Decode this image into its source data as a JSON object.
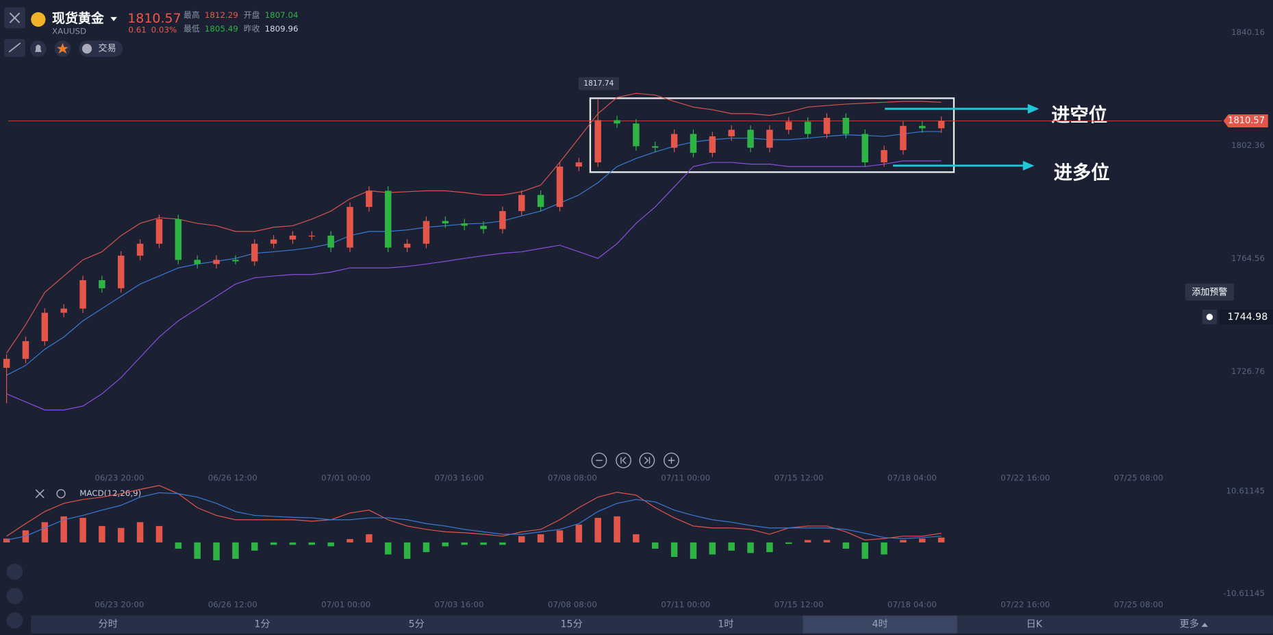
{
  "header": {
    "symbol_name": "现货黄金",
    "code": "XAUUSD",
    "price": "1810.57",
    "change": "0.61",
    "change_pct": "0.03%",
    "stats": [
      {
        "label": "最高",
        "value": "1812.29"
      },
      {
        "label": "开盘",
        "value": "1807.04"
      },
      {
        "label": "最低",
        "value": "1805.49"
      },
      {
        "label": "昨收",
        "value": "1809.96"
      }
    ],
    "trade_button": "交易"
  },
  "chart_data": [
    {
      "type": "candlestick",
      "ylim": [
        1703,
        1851
      ],
      "yticks": [
        1840.16,
        1802.36,
        1764.56,
        1726.76
      ],
      "up_color": "#e4554a",
      "down_color": "#2fb344",
      "open": [
        1728.0,
        1731.0,
        1736.9,
        1746.4,
        1747.8,
        1757.3,
        1754.6,
        1765.5,
        1769.5,
        1777.7,
        1764.1,
        1762.7,
        1764.1,
        1763.6,
        1769.5,
        1770.9,
        1772.2,
        1772.2,
        1768.2,
        1781.8,
        1787.2,
        1768.2,
        1769.5,
        1777.1,
        1776.3,
        1775.5,
        1774.4,
        1780.4,
        1785.8,
        1781.8,
        1795.3,
        1796.7,
        1810.8,
        1809.7,
        1802.1,
        1801.6,
        1806.2,
        1799.9,
        1805.4,
        1807.6,
        1801.6,
        1807.6,
        1810.3,
        1806.2,
        1811.6,
        1806.2,
        1796.7,
        1800.8,
        1808.9,
        1808.1
      ],
      "high": [
        1732.5,
        1738.4,
        1747.9,
        1749.3,
        1758.8,
        1758.8,
        1767.0,
        1771.0,
        1779.2,
        1779.2,
        1765.6,
        1765.6,
        1765.6,
        1771.0,
        1772.4,
        1773.7,
        1773.7,
        1773.7,
        1783.3,
        1788.7,
        1788.7,
        1771.0,
        1778.6,
        1778.6,
        1777.8,
        1777.0,
        1781.9,
        1787.3,
        1787.3,
        1796.8,
        1798.2,
        1817.74,
        1812.3,
        1811.2,
        1803.6,
        1807.7,
        1807.7,
        1806.9,
        1809.1,
        1809.1,
        1809.1,
        1811.8,
        1811.8,
        1813.1,
        1813.1,
        1807.7,
        1802.3,
        1810.4,
        1810.4,
        1812.07
      ],
      "low": [
        1716.15,
        1729.5,
        1735.4,
        1744.9,
        1746.3,
        1753.1,
        1753.1,
        1764.0,
        1768.0,
        1762.6,
        1761.2,
        1761.2,
        1762.6,
        1762.1,
        1768.0,
        1769.4,
        1770.7,
        1766.7,
        1766.7,
        1780.3,
        1766.7,
        1766.7,
        1768.0,
        1774.8,
        1774.0,
        1772.9,
        1772.9,
        1778.9,
        1780.3,
        1780.3,
        1793.8,
        1795.2,
        1808.2,
        1800.6,
        1800.1,
        1800.1,
        1798.4,
        1798.4,
        1803.9,
        1800.1,
        1800.1,
        1806.1,
        1804.7,
        1804.7,
        1804.7,
        1795.2,
        1795.2,
        1799.3,
        1806.6,
        1806.6
      ],
      "close": [
        1731.0,
        1736.9,
        1746.4,
        1747.8,
        1757.3,
        1754.6,
        1765.5,
        1769.5,
        1777.7,
        1764.1,
        1762.7,
        1764.1,
        1763.6,
        1769.5,
        1770.9,
        1772.2,
        1772.2,
        1768.2,
        1781.8,
        1787.2,
        1768.2,
        1769.5,
        1777.1,
        1776.3,
        1775.5,
        1774.4,
        1780.4,
        1785.8,
        1781.8,
        1795.3,
        1796.7,
        1810.8,
        1809.7,
        1802.1,
        1801.6,
        1806.2,
        1799.9,
        1805.4,
        1807.6,
        1801.6,
        1807.6,
        1810.3,
        1806.2,
        1811.6,
        1806.2,
        1796.7,
        1800.8,
        1808.9,
        1808.1,
        1810.57
      ],
      "bands": [
        {
          "color": "#d9534f",
          "values": [
            1732.9,
            1742.4,
            1753.2,
            1758.7,
            1764.1,
            1766.8,
            1772.2,
            1776.3,
            1778.2,
            1777.7,
            1776.3,
            1775.5,
            1773.6,
            1773.6,
            1775.0,
            1775.5,
            1777.7,
            1780.4,
            1784.5,
            1787.2,
            1786.6,
            1786.9,
            1787.2,
            1787.2,
            1786.6,
            1785.8,
            1785.8,
            1786.9,
            1789.1,
            1796.7,
            1804.8,
            1813.0,
            1818.4,
            1819.8,
            1819.2,
            1817.1,
            1815.2,
            1814.3,
            1813.0,
            1813.0,
            1812.4,
            1813.5,
            1815.2,
            1815.7,
            1816.2,
            1816.5,
            1816.8,
            1817.1,
            1817.1,
            1816.8
          ]
        },
        {
          "color": "#3a7bd5",
          "values": [
            1725.5,
            1728.8,
            1734.2,
            1738.3,
            1743.7,
            1747.8,
            1751.9,
            1756.0,
            1758.7,
            1761.4,
            1762.7,
            1763.6,
            1764.6,
            1766.3,
            1766.8,
            1767.4,
            1768.2,
            1769.5,
            1772.2,
            1773.6,
            1773.6,
            1774.1,
            1775.0,
            1775.5,
            1776.1,
            1776.3,
            1777.1,
            1778.8,
            1780.4,
            1783.1,
            1785.8,
            1789.9,
            1795.3,
            1798.0,
            1800.2,
            1802.1,
            1803.5,
            1804.3,
            1804.8,
            1804.8,
            1804.3,
            1804.3,
            1804.8,
            1805.4,
            1805.9,
            1805.7,
            1805.4,
            1806.2,
            1807.0,
            1807.0
          ]
        },
        {
          "color": "#8a4fe0",
          "values": [
            1719.3,
            1716.6,
            1713.9,
            1713.9,
            1715.2,
            1719.3,
            1724.7,
            1731.5,
            1738.3,
            1743.7,
            1747.8,
            1751.9,
            1756.0,
            1758.1,
            1758.7,
            1759.2,
            1759.2,
            1760.0,
            1761.4,
            1761.4,
            1761.4,
            1761.9,
            1762.7,
            1763.6,
            1764.6,
            1765.5,
            1766.3,
            1766.8,
            1767.9,
            1769.0,
            1766.8,
            1764.6,
            1769.5,
            1776.3,
            1781.8,
            1788.5,
            1795.3,
            1796.7,
            1796.7,
            1796.1,
            1796.1,
            1795.3,
            1795.3,
            1795.3,
            1795.3,
            1795.3,
            1796.1,
            1797.2,
            1797.2,
            1797.2
          ]
        }
      ],
      "x_labels": [
        "06/23 20:00",
        "06/26 12:00",
        "07/01 00:00",
        "07/03 16:00",
        "07/08 08:00",
        "07/11 00:00",
        "07/15 12:00",
        "07/18 04:00",
        "07/22 16:00",
        "07/25 08:00"
      ],
      "current_price": 1810.57,
      "high_label": 1817.74,
      "annotations": [
        "进空位",
        "进多位"
      ],
      "alert": {
        "button": "添加预警",
        "price": 1744.98
      }
    },
    {
      "type": "macd",
      "title": "MACD(12,26,9)",
      "ylim": [
        -12,
        12
      ],
      "yticks": [
        10.61145,
        -10.61145
      ],
      "histogram": [
        0.8,
        2.5,
        4.2,
        5.4,
        5.1,
        3.4,
        3.0,
        4.2,
        3.4,
        -1.3,
        -3.4,
        -3.7,
        -3.4,
        -1.7,
        -0.5,
        -0.5,
        -0.5,
        -0.8,
        0.7,
        1.7,
        -2.5,
        -3.4,
        -2.0,
        -0.8,
        -0.5,
        -0.5,
        -0.5,
        1.3,
        1.7,
        2.5,
        3.7,
        5.1,
        5.4,
        1.7,
        -1.3,
        -3.0,
        -3.4,
        -2.5,
        -1.7,
        -2.2,
        -2.0,
        -0.3,
        0.5,
        0.5,
        -1.3,
        -3.4,
        -2.5,
        0.5,
        0.8,
        1.0
      ],
      "lines": [
        {
          "color": "#e4554a",
          "values": [
            1.3,
            3.9,
            6.4,
            8.1,
            8.9,
            9.4,
            10.1,
            11.0,
            11.8,
            10.1,
            7.2,
            5.6,
            4.7,
            4.7,
            4.7,
            4.7,
            4.4,
            4.7,
            6.1,
            6.7,
            4.7,
            3.4,
            2.7,
            2.2,
            2.0,
            1.7,
            1.3,
            2.2,
            2.7,
            4.7,
            7.2,
            9.4,
            10.4,
            9.8,
            7.2,
            5.1,
            3.4,
            3.0,
            3.0,
            2.7,
            1.7,
            3.0,
            3.4,
            3.4,
            2.2,
            0.5,
            0.8,
            1.3,
            1.3,
            1.9
          ]
        },
        {
          "color": "#3a7bd5",
          "values": [
            0.5,
            1.3,
            3.0,
            4.7,
            5.6,
            6.7,
            7.7,
            9.4,
            10.3,
            10.1,
            9.4,
            8.1,
            6.4,
            5.6,
            5.4,
            5.2,
            5.1,
            4.7,
            4.7,
            5.1,
            5.1,
            4.7,
            3.9,
            3.4,
            2.7,
            2.2,
            1.7,
            1.7,
            2.2,
            2.7,
            3.9,
            6.4,
            8.1,
            8.9,
            8.4,
            6.7,
            5.6,
            4.7,
            4.2,
            3.5,
            3.0,
            3.0,
            3.0,
            3.0,
            2.7,
            1.9,
            1.0,
            0.8,
            1.0,
            1.3
          ]
        }
      ]
    }
  ],
  "timeframes": [
    "分时",
    "1分",
    "5分",
    "15分",
    "1时",
    "4时",
    "日K"
  ],
  "more": "更多",
  "active_timeframe": 5
}
